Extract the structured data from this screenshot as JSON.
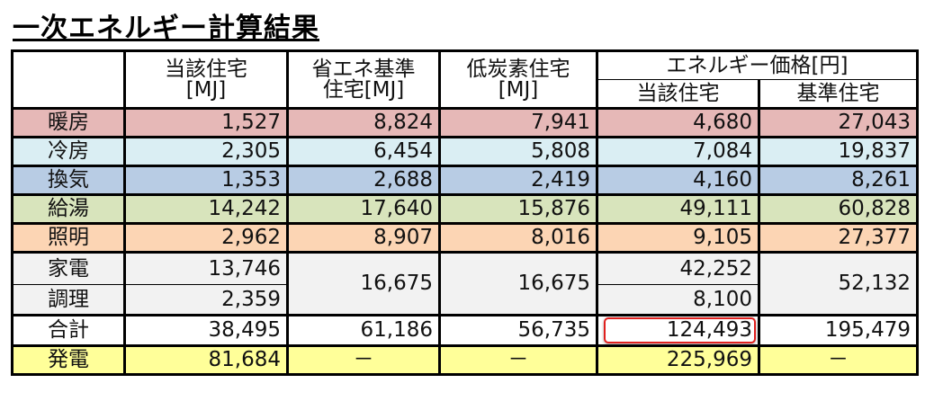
{
  "title": "一次エネルギー計算結果",
  "headers": {
    "col1": [
      "当該住宅",
      "[MJ]"
    ],
    "col2": [
      "省エネ基準",
      "住宅[MJ]"
    ],
    "col3": [
      "低炭素住宅",
      "[MJ]"
    ],
    "price_group": "エネルギー価格[円]",
    "col4": "当該住宅",
    "col5": "基準住宅"
  },
  "colors": {
    "heating": "#e6b8b7",
    "cooling": "#daeef3",
    "ventilation": "#b8cce4",
    "hot_water": "#d8e4bc",
    "lighting": "#fcd5b4",
    "appliances": "#f2f2f2",
    "total": "#ffffff",
    "generation": "#ffff99",
    "highlight": "#e0201e"
  },
  "rows": {
    "heating": {
      "label": "暖房",
      "v": [
        "1,527",
        "8,824",
        "7,941",
        "4,680",
        "27,043"
      ]
    },
    "cooling": {
      "label": "冷房",
      "v": [
        "2,305",
        "6,454",
        "5,808",
        "7,084",
        "19,837"
      ]
    },
    "ventilation": {
      "label": "換気",
      "v": [
        "1,353",
        "2,688",
        "2,419",
        "4,160",
        "8,261"
      ]
    },
    "hot_water": {
      "label": "給湯",
      "v": [
        "14,242",
        "17,640",
        "15,876",
        "49,111",
        "60,828"
      ]
    },
    "lighting": {
      "label": "照明",
      "v": [
        "2,962",
        "8,907",
        "8,016",
        "9,105",
        "27,377"
      ]
    },
    "appliances": {
      "label": "家電",
      "v": [
        "13,746",
        "16,675",
        "16,675",
        "42,252",
        "52,132"
      ]
    },
    "cooking": {
      "label": "調理",
      "v": [
        "2,359",
        "8,100"
      ]
    },
    "total": {
      "label": "合計",
      "v": [
        "38,495",
        "61,186",
        "56,735",
        "124,493",
        "195,479"
      ]
    },
    "generation": {
      "label": "発電",
      "v": [
        "81,684",
        "－",
        "－",
        "225,969",
        "－"
      ]
    }
  }
}
